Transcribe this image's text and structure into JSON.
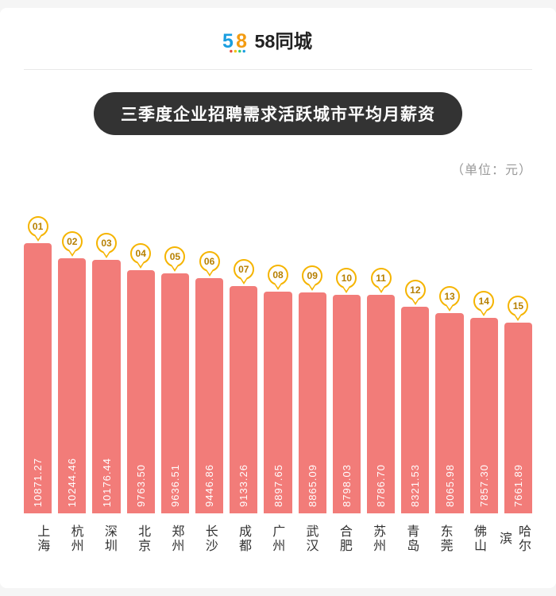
{
  "brand": {
    "name": "58同城",
    "digits_color_5": "#1a9ee0",
    "digits_color_8": "#f39c12",
    "text_color": "#222222",
    "dot_colors": [
      "#e74c3c",
      "#f1c40f",
      "#2ecc71",
      "#1a9ee0"
    ]
  },
  "title": "三季度企业招聘需求活跃城市平均月薪资",
  "title_bg": "#333333",
  "title_color": "#ffffff",
  "unit_label": "（单位：元）",
  "chart": {
    "type": "bar",
    "bar_color": "#f27c79",
    "bar_value_color": "#ffffff",
    "rank_badge_border": "#f5b400",
    "rank_badge_text": "#b67f00",
    "background_color": "#ffffff",
    "bar_border_radius": 4,
    "y_max": 11500,
    "y_min": 0,
    "label_fontsize": 16,
    "value_fontsize": 13,
    "rank_fontsize": 12,
    "data": [
      {
        "rank": "01",
        "city": "上海",
        "value": 10871.27,
        "label": "10871.27"
      },
      {
        "rank": "02",
        "city": "杭州",
        "value": 10244.46,
        "label": "10244.46"
      },
      {
        "rank": "03",
        "city": "深圳",
        "value": 10176.44,
        "label": "10176.44"
      },
      {
        "rank": "04",
        "city": "北京",
        "value": 9763.5,
        "label": "9763.50"
      },
      {
        "rank": "05",
        "city": "郑州",
        "value": 9636.51,
        "label": "9636.51"
      },
      {
        "rank": "06",
        "city": "长沙",
        "value": 9446.86,
        "label": "9446.86"
      },
      {
        "rank": "07",
        "city": "成都",
        "value": 9133.26,
        "label": "9133.26"
      },
      {
        "rank": "08",
        "city": "广州",
        "value": 8897.65,
        "label": "8897.65"
      },
      {
        "rank": "09",
        "city": "武汉",
        "value": 8865.09,
        "label": "8865.09"
      },
      {
        "rank": "10",
        "city": "合肥",
        "value": 8798.03,
        "label": "8798.03"
      },
      {
        "rank": "11",
        "city": "苏州",
        "value": 8786.7,
        "label": "8786.70"
      },
      {
        "rank": "12",
        "city": "青岛",
        "value": 8321.53,
        "label": "8321.53"
      },
      {
        "rank": "13",
        "city": "东莞",
        "value": 8065.98,
        "label": "8065.98"
      },
      {
        "rank": "14",
        "city": "佛山",
        "value": 7857.3,
        "label": "7857.30"
      },
      {
        "rank": "15",
        "city": "哈尔滨",
        "value": 7661.89,
        "label": "7661.89"
      }
    ]
  }
}
